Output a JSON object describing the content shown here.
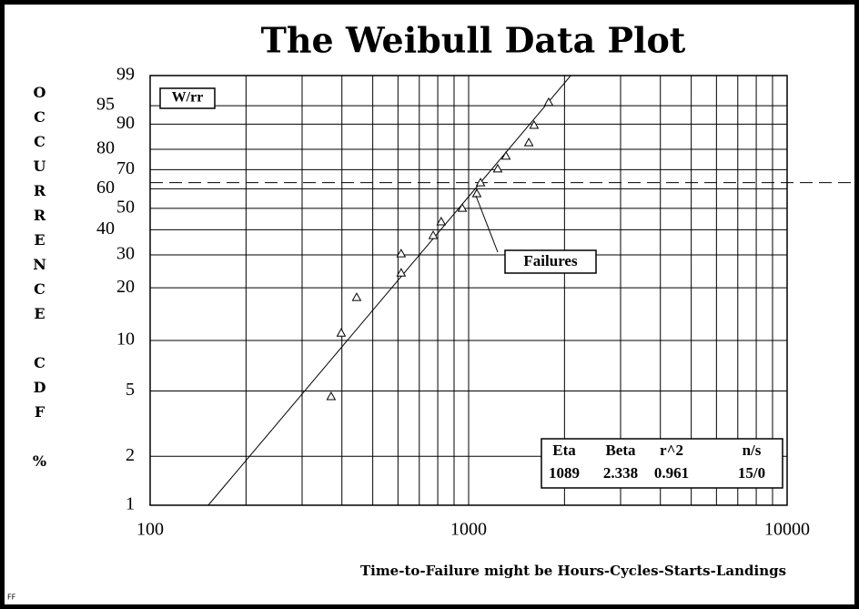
{
  "chart_data": {
    "type": "weibull",
    "title": "The Weibull Data Plot",
    "ylabel": "OCCURRENCE CDF %",
    "xlabel": "Time-to-Failure might be Hours-Cycles-Starts-Landings",
    "footer": "FF",
    "x": [
      370,
      398,
      445,
      614,
      614,
      774,
      820,
      955,
      1061,
      1090,
      1234,
      1310,
      1545,
      1605,
      1784
    ],
    "values": [
      4.6,
      11.0,
      17.6,
      24.0,
      30.3,
      37.4,
      43.4,
      49.9,
      57.3,
      63.0,
      70.2,
      76.6,
      82.8,
      89.5,
      95.6
    ],
    "xlim": [
      100,
      10000
    ],
    "xticks": [
      100,
      1000,
      10000
    ],
    "log_x": true,
    "ylim": [
      1,
      99
    ],
    "yticks": [
      99,
      95,
      90,
      80,
      70,
      60,
      50,
      40,
      30,
      20,
      10,
      5,
      2,
      1
    ],
    "y_scale": "weibull",
    "grid": true,
    "annotations": [
      "W/rr",
      "Failures"
    ],
    "stats": {
      "headers": [
        "Eta",
        "Beta",
        "r^2",
        "n/s"
      ],
      "values": [
        1089,
        2.338,
        0.961,
        "15/0"
      ]
    }
  }
}
